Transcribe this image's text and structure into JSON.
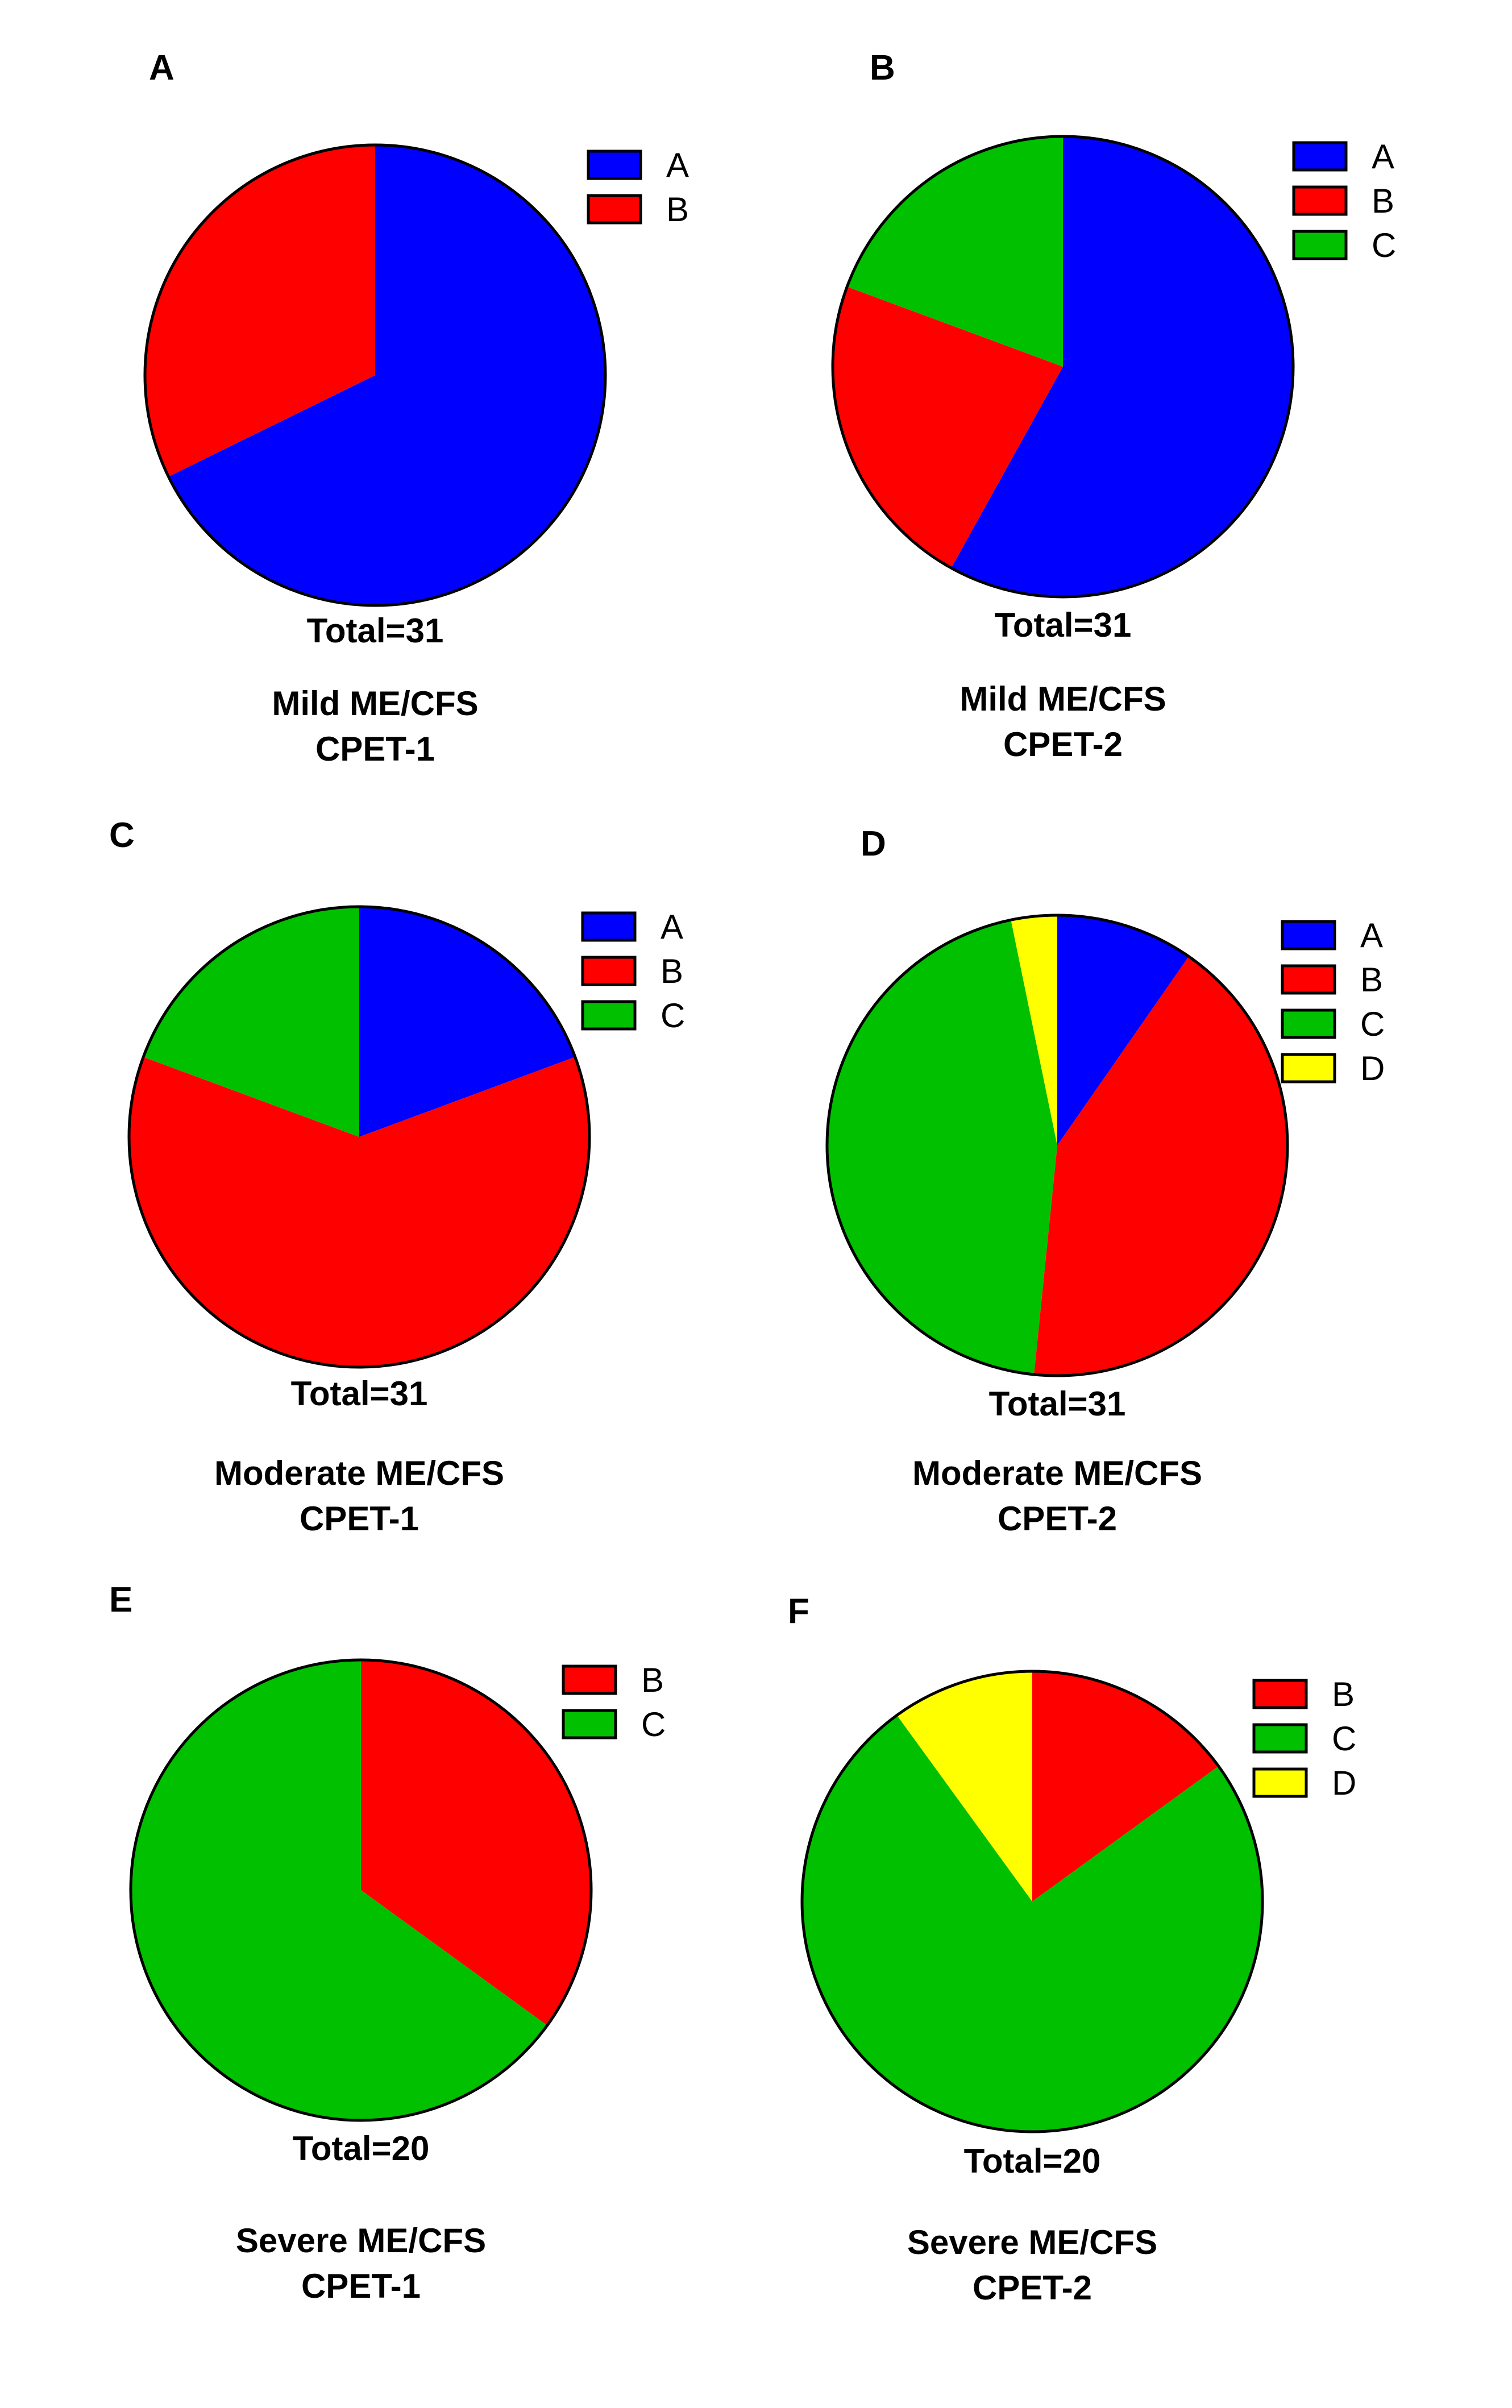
{
  "colors": {
    "A": "#0000ff",
    "B": "#ff0000",
    "C": "#00c000",
    "D": "#ffff00",
    "outline": "#000000"
  },
  "chart_data": [
    {
      "type": "pie",
      "panel": "A",
      "labels": [
        "A",
        "B"
      ],
      "values": [
        21,
        10
      ],
      "legend": [
        "A",
        "B"
      ],
      "total_label": "Total=31",
      "title_lines": [
        "Mild ME/CFS",
        "CPET-1"
      ]
    },
    {
      "type": "pie",
      "panel": "B",
      "labels": [
        "A",
        "B",
        "C"
      ],
      "values": [
        18,
        7,
        6
      ],
      "legend": [
        "A",
        "B",
        "C"
      ],
      "total_label": "Total=31",
      "title_lines": [
        "Mild ME/CFS",
        "CPET-2"
      ]
    },
    {
      "type": "pie",
      "panel": "C",
      "labels": [
        "A",
        "B",
        "C"
      ],
      "values": [
        6,
        19,
        6
      ],
      "legend": [
        "A",
        "B",
        "C"
      ],
      "total_label": "Total=31",
      "title_lines": [
        "Moderate ME/CFS",
        "CPET-1"
      ]
    },
    {
      "type": "pie",
      "panel": "D",
      "labels": [
        "A",
        "B",
        "C",
        "D"
      ],
      "values": [
        3,
        13,
        14,
        1
      ],
      "legend": [
        "A",
        "B",
        "C",
        "D"
      ],
      "total_label": "Total=31",
      "title_lines": [
        "Moderate ME/CFS",
        "CPET-2"
      ]
    },
    {
      "type": "pie",
      "panel": "E",
      "labels": [
        "B",
        "C"
      ],
      "values": [
        7,
        13
      ],
      "legend": [
        "B",
        "C"
      ],
      "total_label": "Total=20",
      "title_lines": [
        "Severe ME/CFS",
        "CPET-1"
      ]
    },
    {
      "type": "pie",
      "panel": "F",
      "labels": [
        "B",
        "C",
        "D"
      ],
      "values": [
        3,
        15,
        2
      ],
      "legend": [
        "B",
        "C",
        "D"
      ],
      "total_label": "Total=20",
      "title_lines": [
        "Severe ME/CFS",
        "CPET-2"
      ]
    }
  ]
}
